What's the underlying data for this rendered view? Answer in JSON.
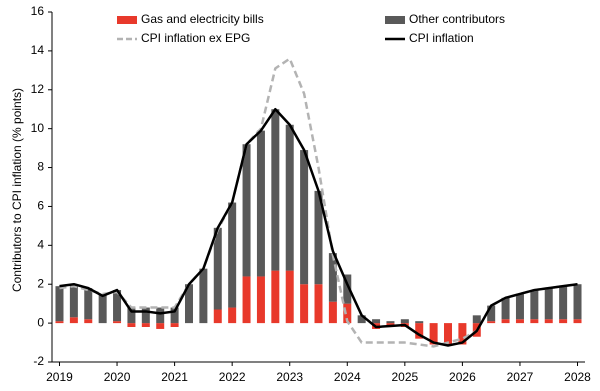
{
  "chart_data": {
    "type": "bar",
    "ylabel": "Contributors to CPI inflation (% points)",
    "x": [
      2019,
      2019.25,
      2019.5,
      2019.75,
      2020,
      2020.25,
      2020.5,
      2020.75,
      2021,
      2021.25,
      2021.5,
      2021.75,
      2022,
      2022.25,
      2022.5,
      2022.75,
      2023,
      2023.25,
      2023.5,
      2023.75,
      2024,
      2024.25,
      2024.5,
      2024.75,
      2025,
      2025.25,
      2025.5,
      2025.75,
      2026,
      2026.25,
      2026.5,
      2026.75,
      2027,
      2027.25,
      2027.5,
      2027.75,
      2028
    ],
    "series": [
      {
        "name": "Gas and electricity bills",
        "type": "bar",
        "color": "#e8392b",
        "values": [
          0.1,
          0.3,
          0.2,
          0,
          0.1,
          -0.2,
          -0.2,
          -0.3,
          -0.2,
          0,
          0,
          0.7,
          0.8,
          2.4,
          2.4,
          2.7,
          2.7,
          2.0,
          2.0,
          1.1,
          1.0,
          0,
          -0.3,
          -0.2,
          -0.2,
          -0.8,
          -1.1,
          -1.1,
          -1.1,
          -0.7,
          0.1,
          0.2,
          0.2,
          0.2,
          0.2,
          0.2,
          0.2
        ]
      },
      {
        "name": "Other contributors",
        "type": "bar",
        "color": "#595959",
        "values": [
          1.8,
          1.7,
          1.6,
          1.5,
          1.6,
          0.8,
          0.8,
          0.8,
          0.8,
          2.0,
          2.8,
          4.2,
          5.4,
          6.8,
          7.5,
          8.3,
          7.5,
          6.9,
          4.8,
          2.5,
          1.5,
          0.4,
          0.2,
          0.1,
          0.2,
          0.1,
          0,
          0,
          0,
          0.4,
          0.8,
          1.1,
          1.3,
          1.5,
          1.6,
          1.7,
          1.8
        ]
      },
      {
        "name": "CPI inflation ex EPG",
        "type": "line",
        "dashed": true,
        "color": "#b3b3b3",
        "values": [
          1.8,
          1.9,
          1.7,
          1.5,
          1.6,
          0.8,
          0.8,
          0.8,
          0.8,
          2.0,
          2.8,
          4.8,
          6.2,
          9.2,
          10.0,
          13.1,
          13.6,
          11.8,
          8.0,
          3.5,
          0.1,
          -1.0,
          -1.0,
          -1.0,
          -1.0,
          -1.1,
          -1.2,
          -1.0,
          -0.8,
          -0.4,
          0.9,
          1.3,
          1.5,
          1.7,
          1.8,
          1.9,
          2.0
        ]
      },
      {
        "name": "CPI inflation",
        "type": "line",
        "dashed": false,
        "color": "#000000",
        "values": [
          1.9,
          2.0,
          1.8,
          1.4,
          1.7,
          0.6,
          0.6,
          0.5,
          0.6,
          2.0,
          2.8,
          4.9,
          6.2,
          9.2,
          9.9,
          11.0,
          10.2,
          8.9,
          6.8,
          3.7,
          2.0,
          0.4,
          -0.2,
          -0.15,
          -0.1,
          -0.6,
          -1.0,
          -1.15,
          -1.0,
          -0.4,
          0.9,
          1.3,
          1.5,
          1.7,
          1.8,
          1.9,
          2.0
        ]
      }
    ],
    "xlim": [
      2018.87,
      2028.13
    ],
    "xticks": [
      2019,
      2020,
      2021,
      2022,
      2023,
      2024,
      2025,
      2026,
      2027,
      2028
    ],
    "ylim": [
      -2,
      16
    ],
    "yticks": [
      -2,
      0,
      2,
      4,
      6,
      8,
      10,
      12,
      14,
      16
    ],
    "grid": false
  }
}
